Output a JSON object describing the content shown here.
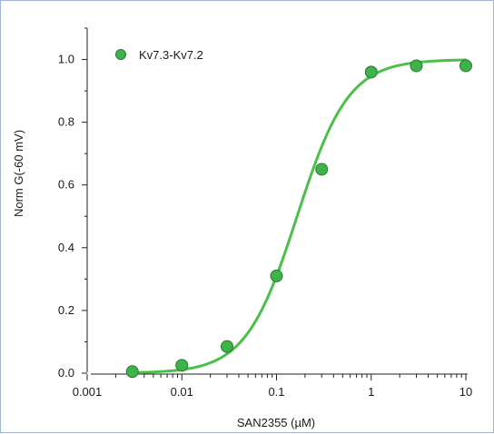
{
  "chart_data": {
    "type": "scatter",
    "title": "",
    "xlabel": "SAN2355 (µM)",
    "ylabel": "Norm G(-60 mV)",
    "x_scale": "log",
    "xlim": [
      0.001,
      10
    ],
    "ylim": [
      0,
      1.1
    ],
    "x_ticks": [
      0.001,
      0.01,
      0.1,
      1,
      10
    ],
    "x_tick_labels": [
      "0.001",
      "0.01",
      "0.1",
      "1",
      "10"
    ],
    "y_ticks": [
      0,
      0.2,
      0.4,
      0.6,
      0.8,
      1.0
    ],
    "y_tick_labels": [
      "0.0",
      "0.2",
      "0.4",
      "0.6",
      "0.8",
      "1.0"
    ],
    "grid": false,
    "legend_position": "top-left",
    "series": [
      {
        "name": "Kv7.3-Kv7.2",
        "color": "#3db34a",
        "marker": "circle",
        "x": [
          0.003,
          0.01,
          0.03,
          0.1,
          0.3,
          1,
          3,
          10
        ],
        "y": [
          0.005,
          0.025,
          0.085,
          0.31,
          0.65,
          0.96,
          0.98,
          0.98
        ]
      }
    ],
    "fit": {
      "type": "hill",
      "color": "#4cbf4a",
      "ec50": 0.165,
      "hill": 1.6,
      "bottom": 0,
      "top": 1.0,
      "x_range": [
        0.003,
        10
      ]
    }
  }
}
